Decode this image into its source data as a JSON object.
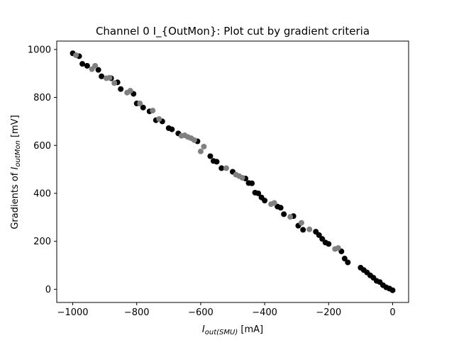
{
  "chart_data": {
    "type": "scatter",
    "title": "Channel 0 I_{OutMon}: Plot cut by gradient criteria",
    "xlabel": {
      "main": "I",
      "sub": "out(SMU)",
      "unit": " [mA]"
    },
    "ylabel": {
      "prefix": "Gradients of ",
      "main": "I",
      "sub": "outMon",
      "unit": " [mV]"
    },
    "xlim": [
      -1050,
      50
    ],
    "ylim": [
      -55,
      1035
    ],
    "xticks": [
      -1000,
      -800,
      -600,
      -400,
      -200,
      0
    ],
    "xtick_labels": [
      "−1000",
      "−800",
      "−600",
      "−400",
      "−200",
      "0"
    ],
    "yticks": [
      0,
      200,
      400,
      600,
      800,
      1000
    ],
    "ytick_labels": [
      "0",
      "200",
      "400",
      "600",
      "800",
      "1000"
    ],
    "grid": false,
    "series": [
      {
        "color": "#000000",
        "points": [
          [
            -1000,
            984
          ],
          [
            -980,
            972
          ],
          [
            -970,
            940
          ],
          [
            -955,
            932
          ],
          [
            -920,
            915
          ],
          [
            -910,
            888
          ],
          [
            -880,
            880
          ],
          [
            -860,
            863
          ],
          [
            -850,
            835
          ],
          [
            -810,
            815
          ],
          [
            -800,
            775
          ],
          [
            -780,
            758
          ],
          [
            -760,
            742
          ],
          [
            -740,
            705
          ],
          [
            -720,
            700
          ],
          [
            -700,
            672
          ],
          [
            -690,
            667
          ],
          [
            -670,
            650
          ],
          [
            -610,
            617
          ],
          [
            -570,
            555
          ],
          [
            -560,
            535
          ],
          [
            -550,
            532
          ],
          [
            -535,
            505
          ],
          [
            -500,
            490
          ],
          [
            -460,
            462
          ],
          [
            -450,
            443
          ],
          [
            -440,
            442
          ],
          [
            -430,
            403
          ],
          [
            -420,
            400
          ],
          [
            -410,
            383
          ],
          [
            -400,
            370
          ],
          [
            -360,
            345
          ],
          [
            -350,
            340
          ],
          [
            -340,
            313
          ],
          [
            -310,
            305
          ],
          [
            -295,
            265
          ],
          [
            -280,
            248
          ],
          [
            -240,
            240
          ],
          [
            -230,
            226
          ],
          [
            -220,
            210
          ],
          [
            -210,
            195
          ],
          [
            -200,
            189
          ],
          [
            -160,
            158
          ],
          [
            -150,
            128
          ],
          [
            -140,
            112
          ],
          [
            -100,
            90
          ],
          [
            -90,
            80
          ],
          [
            -80,
            70
          ],
          [
            -70,
            58
          ],
          [
            -60,
            48
          ],
          [
            -50,
            35
          ],
          [
            -40,
            30
          ],
          [
            -30,
            17
          ],
          [
            -20,
            8
          ],
          [
            -10,
            3
          ],
          [
            0,
            -4
          ]
        ]
      },
      {
        "color": "#808080",
        "points": [
          [
            -990,
            976
          ],
          [
            -940,
            918
          ],
          [
            -930,
            932
          ],
          [
            -895,
            880
          ],
          [
            -885,
            882
          ],
          [
            -870,
            860
          ],
          [
            -830,
            820
          ],
          [
            -820,
            828
          ],
          [
            -790,
            775
          ],
          [
            -750,
            745
          ],
          [
            -730,
            710
          ],
          [
            -660,
            640
          ],
          [
            -650,
            642
          ],
          [
            -640,
            635
          ],
          [
            -630,
            630
          ],
          [
            -620,
            622
          ],
          [
            -600,
            575
          ],
          [
            -590,
            595
          ],
          [
            -520,
            505
          ],
          [
            -490,
            478
          ],
          [
            -480,
            472
          ],
          [
            -470,
            465
          ],
          [
            -380,
            355
          ],
          [
            -370,
            360
          ],
          [
            -320,
            302
          ],
          [
            -285,
            277
          ],
          [
            -260,
            250
          ],
          [
            -180,
            168
          ],
          [
            -170,
            172
          ]
        ]
      }
    ]
  }
}
